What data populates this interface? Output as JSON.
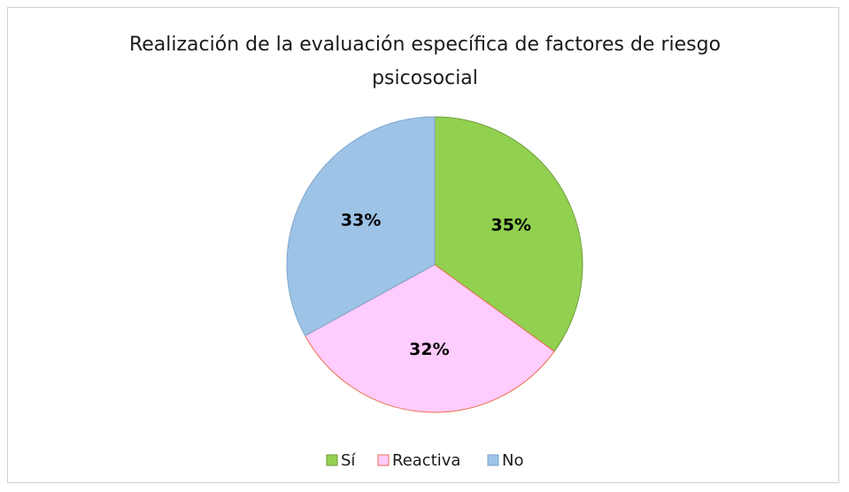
{
  "chart_data": {
    "type": "pie",
    "title": "Realización de la evaluación específica de factores de riesgo psicosocial",
    "categories": [
      "Sí",
      "Reactiva",
      "No"
    ],
    "values": [
      35,
      32,
      33
    ],
    "value_labels": [
      "35%",
      "32%",
      "33%"
    ],
    "colors": [
      "#92d050",
      "#ffccff",
      "#9dc3e6"
    ],
    "legend": "bottom"
  }
}
